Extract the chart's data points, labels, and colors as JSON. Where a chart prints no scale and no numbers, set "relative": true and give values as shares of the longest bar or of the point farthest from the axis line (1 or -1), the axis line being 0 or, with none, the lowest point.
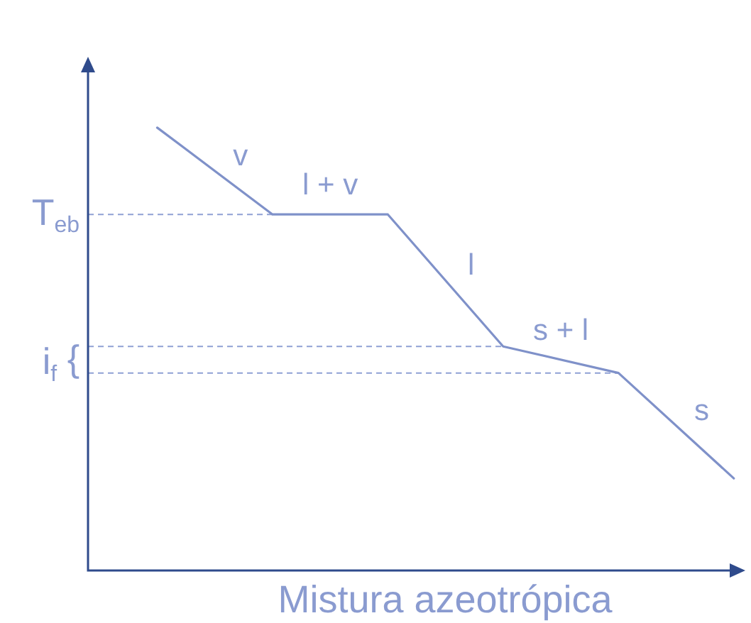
{
  "chart_data": {
    "type": "line",
    "relative": true,
    "xlabel": "Mistura azeotrópica",
    "tick_labels": false,
    "marker": "none",
    "line_style": "solid",
    "categories": [
      null,
      null,
      null,
      null,
      null,
      null
    ],
    "series": [
      {
        "color": "#7f91c9",
        "values": [
          1,
          0.804,
          0.804,
          0.506,
          0.446,
          0.208
        ]
      }
    ],
    "ref_lines": [
      {
        "axis": "y",
        "value": 0.804,
        "label": "T$_{eb}$",
        "line_style": "dashed",
        "color": "#8fa0d4"
      },
      {
        "axis": "y",
        "value": 0.506,
        "label": "i$_{f}$ {",
        "line_style": "dashed",
        "color": "#8fa0d4"
      },
      {
        "axis": "y",
        "value": 0.446,
        "line_style": "dashed",
        "color": "#8fa0d4"
      }
    ],
    "annotations": [
      "v",
      "l + v",
      "l",
      "s + l",
      "s"
    ]
  }
}
